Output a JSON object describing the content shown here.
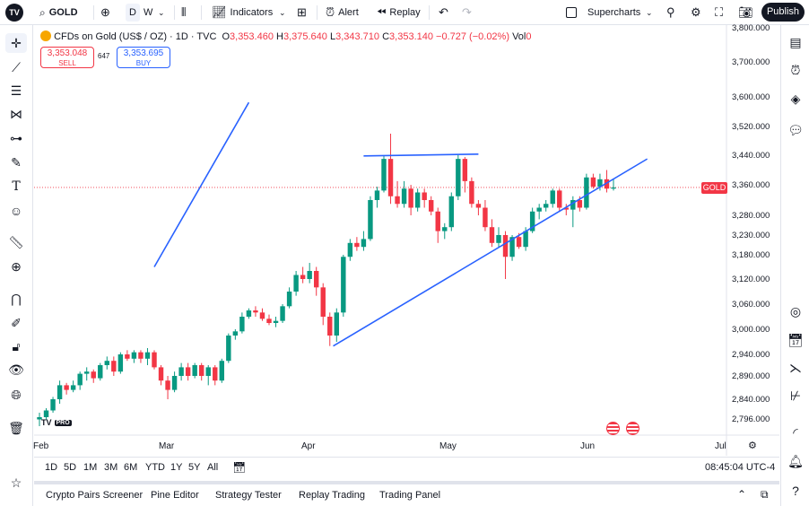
{
  "topbar": {
    "symbol": "GOLD",
    "interval_d": "D",
    "interval_w": "W",
    "indicators_label": "Indicators",
    "alert_label": "Alert",
    "replay_label": "Replay",
    "layout_name": "Supercharts",
    "publish_label": "Publish"
  },
  "legend": {
    "title": "CFDs on Gold (US$ / OZ) · 1D · TVC",
    "o_label": "O",
    "o_val": "3,353.460",
    "h_label": "H",
    "h_val": "3,375.640",
    "l_label": "L",
    "l_val": "3,343.710",
    "c_label": "C",
    "c_val": "3,353.140",
    "change": "−0.727 (−0.02%)",
    "vol_label": "Vol",
    "vol_val": "0"
  },
  "trade": {
    "sell_price": "3,353.048",
    "sell_label": "SELL",
    "spread": "647",
    "buy_price": "3,353.695",
    "buy_label": "BUY"
  },
  "price_axis": [
    "3,800.000",
    "3,700.000",
    "3,600.000",
    "3,520.000",
    "3,440.000",
    "3,360.000",
    "3,280.000",
    "3,230.000",
    "3,180.000",
    "3,120.000",
    "3,060.000",
    "3,000.000",
    "2,940.000",
    "2,890.000",
    "2,840.000",
    "2,796.000"
  ],
  "date_axis": [
    "Feb",
    "Mar",
    "Apr",
    "May",
    "Jun",
    "Jul"
  ],
  "symbol_tag": "GOLD",
  "logo_text": "TV",
  "watermark": {
    "text": "TV",
    "badge": "PRO"
  },
  "timeframes": [
    "1D",
    "5D",
    "1M",
    "3M",
    "6M",
    "YTD",
    "1Y",
    "5Y",
    "All"
  ],
  "clock": "08:45:04 UTC-4",
  "bottom_tabs": [
    "Crypto Pairs Screener",
    "Pine Editor",
    "Strategy Tester",
    "Replay Trading",
    "Trading Panel"
  ],
  "colors": {
    "up": "#089981",
    "down": "#f23645",
    "trendline": "#2962ff"
  },
  "chart_data": {
    "type": "candlestick",
    "series": [
      {
        "o": 2795,
        "h": 2810,
        "l": 2780,
        "c": 2800
      },
      {
        "o": 2800,
        "h": 2820,
        "l": 2795,
        "c": 2815
      },
      {
        "o": 2815,
        "h": 2845,
        "l": 2810,
        "c": 2840
      },
      {
        "o": 2840,
        "h": 2880,
        "l": 2830,
        "c": 2870
      },
      {
        "o": 2870,
        "h": 2875,
        "l": 2850,
        "c": 2860
      },
      {
        "o": 2860,
        "h": 2880,
        "l": 2855,
        "c": 2870
      },
      {
        "o": 2870,
        "h": 2900,
        "l": 2860,
        "c": 2895
      },
      {
        "o": 2895,
        "h": 2910,
        "l": 2880,
        "c": 2900
      },
      {
        "o": 2900,
        "h": 2905,
        "l": 2875,
        "c": 2885
      },
      {
        "o": 2885,
        "h": 2920,
        "l": 2880,
        "c": 2915
      },
      {
        "o": 2915,
        "h": 2935,
        "l": 2905,
        "c": 2925
      },
      {
        "o": 2925,
        "h": 2935,
        "l": 2890,
        "c": 2900
      },
      {
        "o": 2900,
        "h": 2945,
        "l": 2895,
        "c": 2940
      },
      {
        "o": 2940,
        "h": 2950,
        "l": 2925,
        "c": 2930
      },
      {
        "o": 2930,
        "h": 2950,
        "l": 2920,
        "c": 2945
      },
      {
        "o": 2945,
        "h": 2950,
        "l": 2920,
        "c": 2930
      },
      {
        "o": 2930,
        "h": 2955,
        "l": 2915,
        "c": 2945
      },
      {
        "o": 2945,
        "h": 2950,
        "l": 2905,
        "c": 2910
      },
      {
        "o": 2910,
        "h": 2915,
        "l": 2870,
        "c": 2880
      },
      {
        "o": 2880,
        "h": 2890,
        "l": 2840,
        "c": 2860
      },
      {
        "o": 2860,
        "h": 2900,
        "l": 2855,
        "c": 2890
      },
      {
        "o": 2890,
        "h": 2920,
        "l": 2880,
        "c": 2910
      },
      {
        "o": 2910,
        "h": 2920,
        "l": 2880,
        "c": 2890
      },
      {
        "o": 2890,
        "h": 2920,
        "l": 2885,
        "c": 2915
      },
      {
        "o": 2915,
        "h": 2920,
        "l": 2880,
        "c": 2890
      },
      {
        "o": 2890,
        "h": 2915,
        "l": 2870,
        "c": 2910
      },
      {
        "o": 2910,
        "h": 2915,
        "l": 2870,
        "c": 2880
      },
      {
        "o": 2880,
        "h": 2930,
        "l": 2875,
        "c": 2925
      },
      {
        "o": 2925,
        "h": 2990,
        "l": 2920,
        "c": 2985
      },
      {
        "o": 2985,
        "h": 3000,
        "l": 2975,
        "c": 2995
      },
      {
        "o": 2995,
        "h": 3040,
        "l": 2990,
        "c": 3030
      },
      {
        "o": 3030,
        "h": 3050,
        "l": 3025,
        "c": 3045
      },
      {
        "o": 3045,
        "h": 3055,
        "l": 3030,
        "c": 3040
      },
      {
        "o": 3040,
        "h": 3050,
        "l": 3020,
        "c": 3025
      },
      {
        "o": 3025,
        "h": 3035,
        "l": 3010,
        "c": 3015
      },
      {
        "o": 3015,
        "h": 3030,
        "l": 3005,
        "c": 3020
      },
      {
        "o": 3020,
        "h": 3060,
        "l": 3015,
        "c": 3055
      },
      {
        "o": 3055,
        "h": 3100,
        "l": 3050,
        "c": 3090
      },
      {
        "o": 3090,
        "h": 3140,
        "l": 3080,
        "c": 3130
      },
      {
        "o": 3130,
        "h": 3150,
        "l": 3110,
        "c": 3120
      },
      {
        "o": 3120,
        "h": 3160,
        "l": 3110,
        "c": 3140
      },
      {
        "o": 3140,
        "h": 3150,
        "l": 3080,
        "c": 3100
      },
      {
        "o": 3100,
        "h": 3110,
        "l": 3010,
        "c": 3030
      },
      {
        "o": 3030,
        "h": 3040,
        "l": 2960,
        "c": 2985
      },
      {
        "o": 2985,
        "h": 3050,
        "l": 2970,
        "c": 3040
      },
      {
        "o": 3040,
        "h": 3180,
        "l": 3030,
        "c": 3175
      },
      {
        "o": 3175,
        "h": 3220,
        "l": 3165,
        "c": 3210
      },
      {
        "o": 3210,
        "h": 3225,
        "l": 3190,
        "c": 3200
      },
      {
        "o": 3200,
        "h": 3240,
        "l": 3190,
        "c": 3220
      },
      {
        "o": 3220,
        "h": 3330,
        "l": 3215,
        "c": 3320
      },
      {
        "o": 3320,
        "h": 3355,
        "l": 3300,
        "c": 3345
      },
      {
        "o": 3345,
        "h": 3440,
        "l": 3340,
        "c": 3430
      },
      {
        "o": 3430,
        "h": 3500,
        "l": 3310,
        "c": 3330
      },
      {
        "o": 3330,
        "h": 3370,
        "l": 3300,
        "c": 3310
      },
      {
        "o": 3310,
        "h": 3370,
        "l": 3300,
        "c": 3350
      },
      {
        "o": 3350,
        "h": 3360,
        "l": 3280,
        "c": 3300
      },
      {
        "o": 3300,
        "h": 3350,
        "l": 3290,
        "c": 3340
      },
      {
        "o": 3340,
        "h": 3350,
        "l": 3300,
        "c": 3320
      },
      {
        "o": 3320,
        "h": 3330,
        "l": 3280,
        "c": 3290
      },
      {
        "o": 3290,
        "h": 3300,
        "l": 3210,
        "c": 3240
      },
      {
        "o": 3240,
        "h": 3260,
        "l": 3220,
        "c": 3250
      },
      {
        "o": 3250,
        "h": 3340,
        "l": 3240,
        "c": 3330
      },
      {
        "o": 3330,
        "h": 3440,
        "l": 3320,
        "c": 3430
      },
      {
        "o": 3430,
        "h": 3435,
        "l": 3340,
        "c": 3370
      },
      {
        "o": 3370,
        "h": 3380,
        "l": 3300,
        "c": 3310
      },
      {
        "o": 3310,
        "h": 3320,
        "l": 3280,
        "c": 3300
      },
      {
        "o": 3300,
        "h": 3320,
        "l": 3240,
        "c": 3250
      },
      {
        "o": 3250,
        "h": 3270,
        "l": 3200,
        "c": 3210
      },
      {
        "o": 3210,
        "h": 3250,
        "l": 3200,
        "c": 3230
      },
      {
        "o": 3230,
        "h": 3240,
        "l": 3120,
        "c": 3175
      },
      {
        "o": 3175,
        "h": 3230,
        "l": 3165,
        "c": 3225
      },
      {
        "o": 3225,
        "h": 3235,
        "l": 3195,
        "c": 3200
      },
      {
        "o": 3200,
        "h": 3250,
        "l": 3190,
        "c": 3240
      },
      {
        "o": 3240,
        "h": 3300,
        "l": 3235,
        "c": 3290
      },
      {
        "o": 3290,
        "h": 3310,
        "l": 3270,
        "c": 3300
      },
      {
        "o": 3300,
        "h": 3320,
        "l": 3290,
        "c": 3310
      },
      {
        "o": 3310,
        "h": 3350,
        "l": 3300,
        "c": 3345
      },
      {
        "o": 3345,
        "h": 3350,
        "l": 3290,
        "c": 3300
      },
      {
        "o": 3300,
        "h": 3310,
        "l": 3280,
        "c": 3295
      },
      {
        "o": 3295,
        "h": 3330,
        "l": 3250,
        "c": 3320
      },
      {
        "o": 3320,
        "h": 3330,
        "l": 3290,
        "c": 3300
      },
      {
        "o": 3300,
        "h": 3390,
        "l": 3295,
        "c": 3380
      },
      {
        "o": 3380,
        "h": 3390,
        "l": 3350,
        "c": 3355
      },
      {
        "o": 3355,
        "h": 3390,
        "l": 3345,
        "c": 3375
      },
      {
        "o": 3375,
        "h": 3400,
        "l": 3340,
        "c": 3350
      },
      {
        "o": 3350,
        "h": 3375,
        "l": 3345,
        "c": 3353
      }
    ],
    "last_price": 3353.14,
    "trendlines": [
      {
        "from": {
          "index": 43.5,
          "price": 2960
        },
        "to": {
          "index": 90,
          "price": 3430
        }
      },
      {
        "from": {
          "index": 48,
          "price": 3438
        },
        "to": {
          "index": 65,
          "price": 3443
        }
      },
      {
        "from": {
          "index": 17,
          "price": 3150
        },
        "to": {
          "index": 31,
          "price": 3585
        }
      }
    ]
  }
}
